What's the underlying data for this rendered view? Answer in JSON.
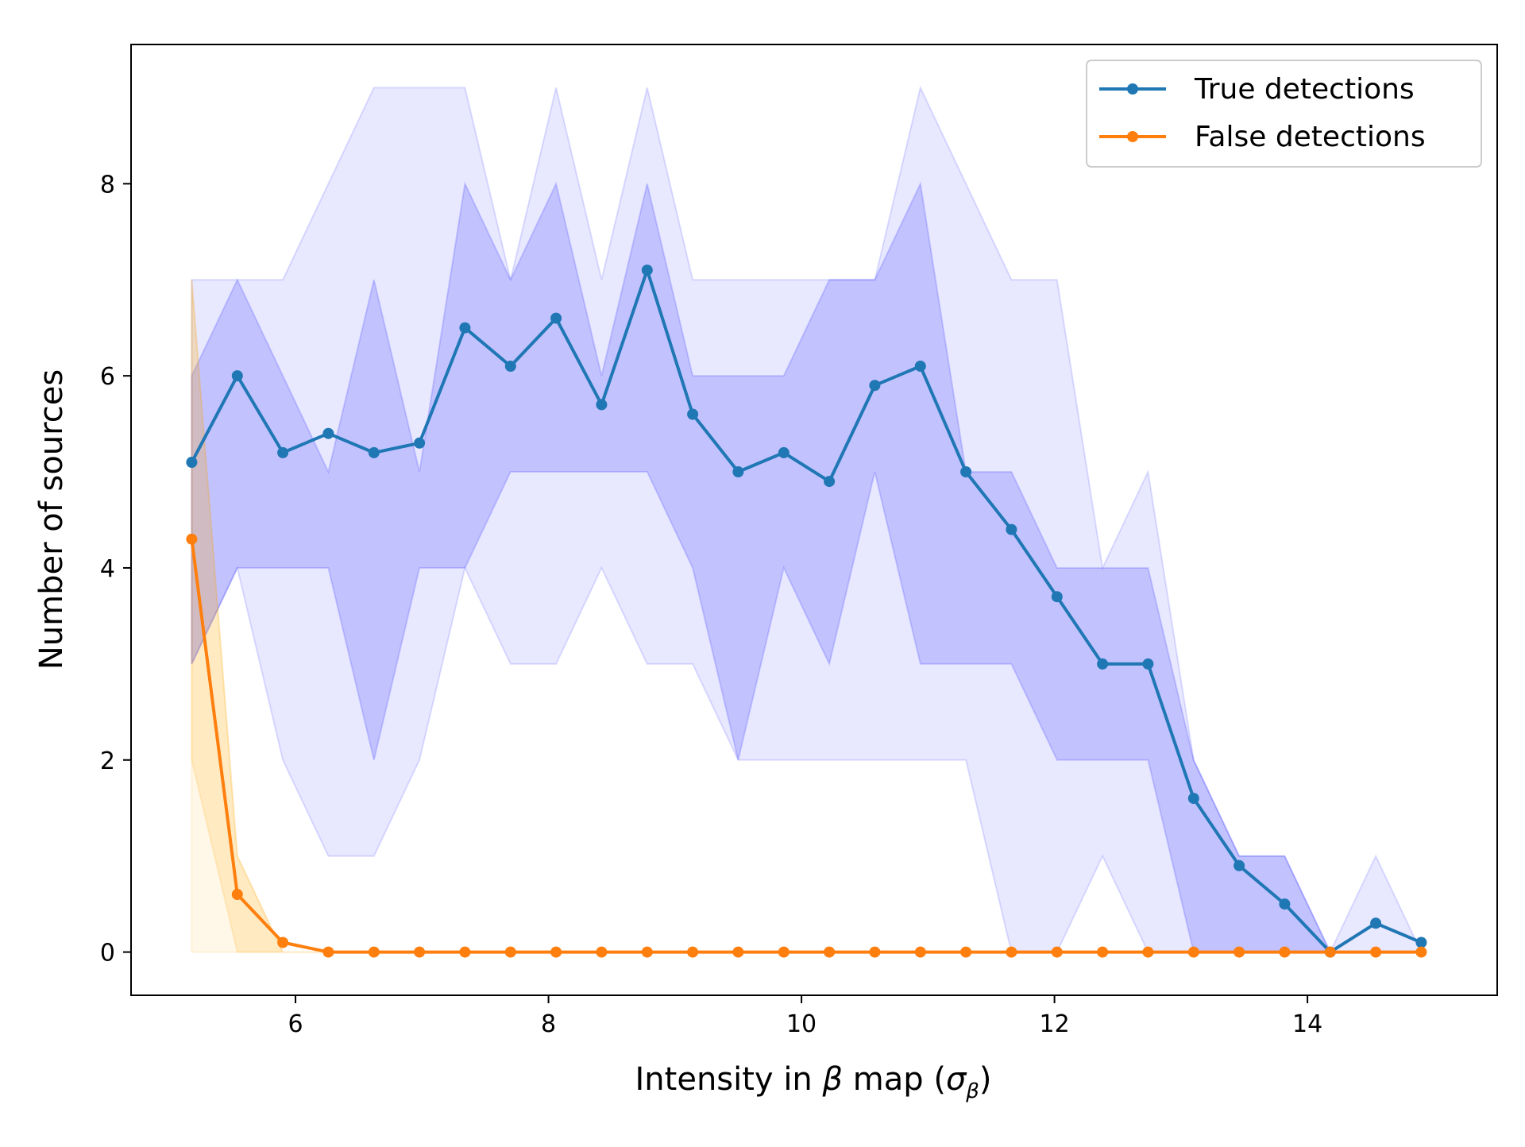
{
  "chart_data": {
    "type": "line",
    "xlabel_prefix": "Intensity in ",
    "xlabel_symbol": "β",
    "xlabel_suffix": " map (",
    "xlabel_sigma": "σ",
    "xlabel_sub": "β",
    "xlabel_close": ")",
    "ylabel": "Number of sources",
    "xlim": [
      4.7,
      15.5
    ],
    "ylim": [
      -0.45,
      9.45
    ],
    "xticks": [
      6,
      8,
      10,
      12,
      14
    ],
    "yticks": [
      0,
      2,
      4,
      6,
      8
    ],
    "grid": false,
    "legend_position": "top-right",
    "x": [
      5.18,
      5.54,
      5.9,
      6.26,
      6.62,
      6.98,
      7.34,
      7.7,
      8.06,
      8.42,
      8.78,
      9.14,
      9.5,
      9.86,
      10.22,
      10.58,
      10.94,
      11.3,
      11.66,
      12.02,
      12.38,
      12.74,
      13.1,
      13.46,
      13.82,
      14.18,
      14.54,
      14.9
    ],
    "series": [
      {
        "name": "True detections",
        "color": "#1f77b4",
        "values": [
          5.1,
          6.0,
          5.2,
          5.4,
          5.2,
          5.3,
          6.5,
          6.1,
          6.6,
          5.7,
          7.1,
          5.6,
          5.0,
          5.2,
          4.9,
          5.9,
          6.1,
          5.0,
          4.4,
          3.7,
          3.0,
          3.0,
          1.6,
          0.9,
          0.5,
          0.0,
          0.3,
          0.1
        ],
        "band_color": "#0000ff",
        "outer_lower": [
          3,
          4,
          2,
          1,
          1,
          2,
          4,
          3,
          3,
          4,
          3,
          3,
          2,
          2,
          2,
          2,
          2,
          2,
          0,
          0,
          1,
          0,
          0,
          0,
          0,
          0,
          0,
          0
        ],
        "outer_upper": [
          7,
          7,
          7,
          8,
          9,
          9,
          9,
          7,
          9,
          7,
          9,
          7,
          7,
          7,
          7,
          7,
          9,
          8,
          7,
          7,
          4,
          5,
          2,
          1,
          1,
          0,
          1,
          0
        ],
        "inner_lower": [
          3,
          4,
          4,
          4,
          2,
          4,
          4,
          5,
          5,
          5,
          5,
          4,
          2,
          4,
          3,
          5,
          3,
          3,
          3,
          2,
          2,
          2,
          0,
          0,
          0,
          0,
          0,
          0
        ],
        "inner_upper": [
          6,
          7,
          6,
          5,
          7,
          5,
          8,
          7,
          8,
          6,
          8,
          6,
          6,
          6,
          7,
          7,
          8,
          5,
          5,
          4,
          4,
          4,
          2,
          1,
          1,
          0,
          0,
          0
        ]
      },
      {
        "name": "False detections",
        "color": "#ff7f0e",
        "values": [
          4.3,
          0.6,
          0.1,
          0,
          0,
          0,
          0,
          0,
          0,
          0,
          0,
          0,
          0,
          0,
          0,
          0,
          0,
          0,
          0,
          0,
          0,
          0,
          0,
          0,
          0,
          0,
          0,
          0
        ],
        "band_color": "#ffa500",
        "outer_lower": [
          0,
          0,
          0,
          0,
          0,
          0,
          0,
          0,
          0,
          0,
          0,
          0,
          0,
          0,
          0,
          0,
          0,
          0,
          0,
          0,
          0,
          0,
          0,
          0,
          0,
          0,
          0,
          0
        ],
        "outer_upper": [
          7,
          1,
          0,
          0,
          0,
          0,
          0,
          0,
          0,
          0,
          0,
          0,
          0,
          0,
          0,
          0,
          0,
          0,
          0,
          0,
          0,
          0,
          0,
          0,
          0,
          0,
          0,
          0
        ],
        "inner_lower": [
          2,
          0,
          0,
          0,
          0,
          0,
          0,
          0,
          0,
          0,
          0,
          0,
          0,
          0,
          0,
          0,
          0,
          0,
          0,
          0,
          0,
          0,
          0,
          0,
          0,
          0,
          0,
          0
        ],
        "inner_upper": [
          7,
          1,
          0,
          0,
          0,
          0,
          0,
          0,
          0,
          0,
          0,
          0,
          0,
          0,
          0,
          0,
          0,
          0,
          0,
          0,
          0,
          0,
          0,
          0,
          0,
          0,
          0,
          0
        ]
      }
    ]
  }
}
